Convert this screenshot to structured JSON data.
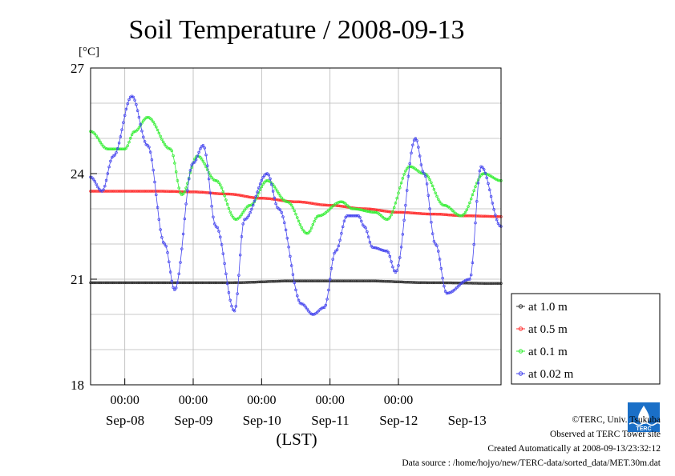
{
  "chart_data": {
    "type": "line",
    "title": "Soil Temperature / 2008-09-13",
    "ylabel": "[°C]",
    "xlabel": "(LST)",
    "ylim": [
      18,
      27
    ],
    "yticks": [
      "18",
      "21",
      "24",
      "27"
    ],
    "xlim_hours_from_sep07_1200": [
      0,
      144
    ],
    "x_tick_times": [
      "00:00",
      "00:00",
      "00:00",
      "00:00",
      "00:00"
    ],
    "x_date_labels": [
      "Sep-08",
      "Sep-09",
      "Sep-10",
      "Sep-11",
      "Sep-12",
      "Sep-13"
    ],
    "grid": true,
    "legend_position": "right",
    "series": [
      {
        "name": "at 1.0 m",
        "color": "#333333",
        "x": [
          0,
          24,
          48,
          72,
          96,
          120,
          144
        ],
        "values": [
          20.9,
          20.9,
          20.9,
          20.95,
          20.95,
          20.9,
          20.88
        ]
      },
      {
        "name": "at 0.5 m",
        "color": "#ff3030",
        "x": [
          0,
          12,
          24,
          36,
          48,
          60,
          72,
          84,
          96,
          108,
          120,
          132,
          144
        ],
        "values": [
          23.5,
          23.5,
          23.5,
          23.48,
          23.42,
          23.3,
          23.2,
          23.1,
          23.0,
          22.9,
          22.85,
          22.8,
          22.78
        ]
      },
      {
        "name": "at 0.1 m",
        "color": "#33ee33",
        "x": [
          0,
          6,
          12,
          15.5,
          20,
          28,
          32,
          37.5,
          44,
          51,
          56,
          62,
          69,
          76,
          80,
          88,
          92,
          100,
          104,
          112,
          117,
          124,
          130,
          138,
          144
        ],
        "values": [
          25.2,
          24.7,
          24.7,
          25.2,
          25.6,
          24.7,
          23.4,
          24.5,
          23.8,
          22.7,
          23.1,
          23.8,
          23.2,
          22.3,
          22.8,
          23.2,
          23.0,
          22.9,
          22.7,
          24.2,
          24.0,
          23.1,
          22.8,
          24.0,
          23.8
        ]
      },
      {
        "name": "at 0.02 m",
        "color": "#4444ee",
        "x": [
          0,
          4,
          8,
          14.5,
          20,
          26,
          29.5,
          36,
          39.5,
          44,
          50.5,
          54,
          62,
          66,
          74,
          78,
          82,
          86,
          90,
          94,
          96,
          99,
          104,
          107,
          114,
          117,
          121,
          125,
          133,
          137,
          144
        ],
        "values": [
          23.9,
          23.5,
          24.5,
          26.2,
          24.8,
          22.0,
          20.7,
          24.3,
          24.8,
          22.5,
          20.1,
          22.7,
          24.0,
          23.0,
          20.3,
          20.0,
          20.2,
          21.8,
          22.8,
          22.8,
          22.5,
          21.9,
          21.8,
          21.2,
          25.0,
          24.0,
          22.0,
          20.6,
          21.0,
          24.2,
          22.5
        ]
      }
    ]
  },
  "legend": {
    "items": [
      "at 1.0 m",
      "at 0.5 m",
      "at 0.1 m",
      "at 0.02 m"
    ]
  },
  "footer": {
    "copyright": "©TERC, Univ. Tsukuba",
    "site": "Observed at TERC Tower site",
    "created": "Created Automatically at 2008-09-13/23:32:12",
    "source": "Data source : /home/hojyo/new/TERC-data/sorted_data/MET.30m.dat"
  },
  "logo": {
    "text": "TERC",
    "color": "#1a6fc7"
  }
}
